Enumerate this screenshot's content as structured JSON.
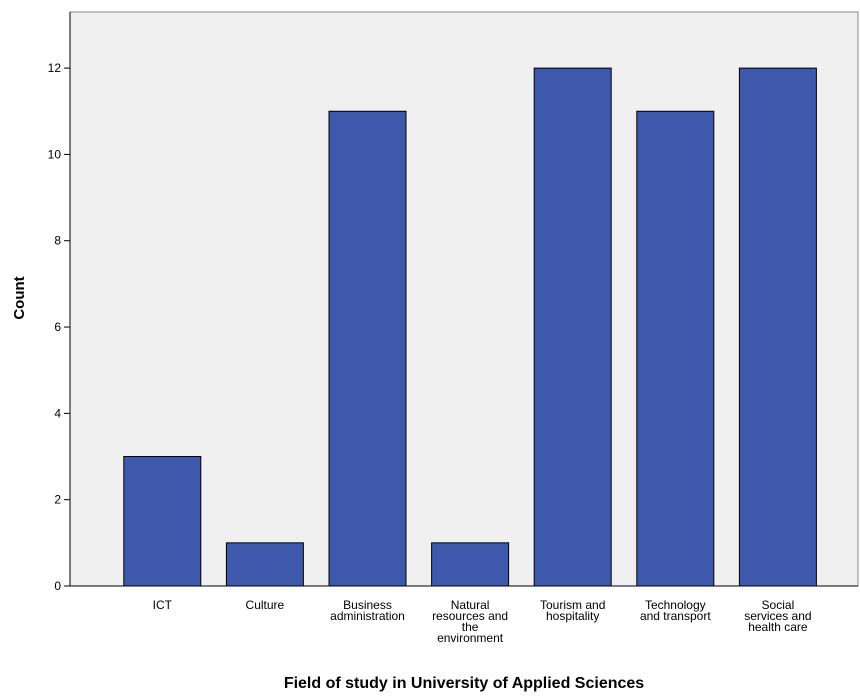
{
  "chart_data": {
    "type": "bar",
    "title": "Field of study in University of Applied Sciences",
    "y_label": "Count",
    "categories": [
      "ICT",
      "Culture",
      "Business administration",
      "Natural resources and the environment",
      "Tourism and hospitality",
      "Technology and transport",
      "Social services and health care"
    ],
    "values": [
      3,
      1,
      11,
      1,
      12,
      11,
      12
    ],
    "color": "#3e58ac",
    "ylim": [
      0,
      13.3
    ],
    "yticks": [
      0,
      2,
      4,
      6,
      8,
      10,
      12
    ],
    "grid": false
  }
}
